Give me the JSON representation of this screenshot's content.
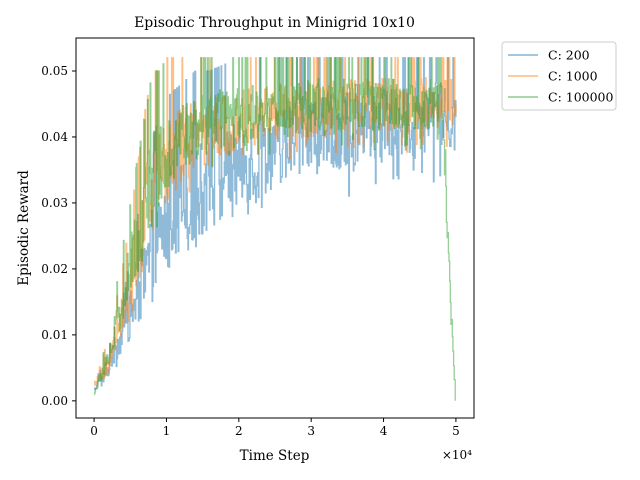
{
  "chart_data": {
    "type": "line",
    "title": "Episodic Throughput in Minigrid 10x10",
    "xlabel": "Time Step",
    "ylabel": "Episodic Reward",
    "x_multiplier_label": "×10⁴",
    "xlim": [
      -2500,
      52500
    ],
    "ylim": [
      -0.0026,
      0.055
    ],
    "xticks": [
      0,
      10000,
      20000,
      30000,
      40000,
      50000
    ],
    "xtick_labels": [
      "0",
      "1",
      "2",
      "3",
      "4",
      "5"
    ],
    "yticks": [
      0,
      0.01,
      0.02,
      0.03,
      0.04,
      0.05
    ],
    "ytick_labels": [
      "0.00",
      "0.01",
      "0.02",
      "0.03",
      "0.04",
      "0.05"
    ],
    "legend_position": "outside-top-right",
    "grid": false,
    "series": [
      {
        "name": "C: 200",
        "color": "#1f77b4",
        "x": [
          0,
          1000,
          2000,
          3000,
          4000,
          5000,
          6000,
          7000,
          8000,
          9000,
          10000,
          12000,
          14000,
          16000,
          18000,
          20000,
          22000,
          24000,
          26000,
          28000,
          30000,
          32000,
          34000,
          36000,
          38000,
          40000,
          42000,
          44000,
          46000,
          48000,
          50000
        ],
        "y": [
          0.002,
          0.003,
          0.005,
          0.008,
          0.01,
          0.013,
          0.016,
          0.019,
          0.022,
          0.025,
          0.027,
          0.029,
          0.031,
          0.033,
          0.034,
          0.036,
          0.037,
          0.038,
          0.039,
          0.04,
          0.04,
          0.041,
          0.041,
          0.041,
          0.042,
          0.042,
          0.042,
          0.042,
          0.043,
          0.043,
          0.043
        ],
        "low": [
          0.001,
          0.002,
          0.003,
          0.005,
          0.007,
          0.009,
          0.011,
          0.012,
          0.014,
          0.015,
          0.018,
          0.02,
          0.022,
          0.024,
          0.026,
          0.027,
          0.028,
          0.029,
          0.029,
          0.03,
          0.03,
          0.031,
          0.031,
          0.031,
          0.032,
          0.032,
          0.032,
          0.032,
          0.033,
          0.033,
          0.035
        ],
        "high": [
          0.003,
          0.005,
          0.008,
          0.012,
          0.016,
          0.022,
          0.028,
          0.035,
          0.04,
          0.043,
          0.046,
          0.048,
          0.05,
          0.05,
          0.051,
          0.052,
          0.052,
          0.052,
          0.052,
          0.052,
          0.052,
          0.052,
          0.052,
          0.052,
          0.052,
          0.052,
          0.052,
          0.052,
          0.052,
          0.052,
          0.052
        ]
      },
      {
        "name": "C: 1000",
        "color": "#ff7f0e",
        "x": [
          0,
          1000,
          2000,
          3000,
          4000,
          5000,
          6000,
          7000,
          8000,
          9000,
          10000,
          12000,
          14000,
          16000,
          18000,
          20000,
          22000,
          24000,
          26000,
          28000,
          30000,
          32000,
          34000,
          36000,
          38000,
          40000,
          42000,
          44000,
          46000,
          48000,
          50000
        ],
        "y": [
          0.002,
          0.004,
          0.006,
          0.01,
          0.014,
          0.018,
          0.023,
          0.028,
          0.032,
          0.035,
          0.037,
          0.039,
          0.04,
          0.041,
          0.042,
          0.043,
          0.043,
          0.044,
          0.044,
          0.044,
          0.044,
          0.044,
          0.045,
          0.045,
          0.045,
          0.045,
          0.045,
          0.045,
          0.045,
          0.045,
          0.045
        ],
        "low": [
          0.001,
          0.002,
          0.003,
          0.006,
          0.008,
          0.011,
          0.014,
          0.017,
          0.021,
          0.024,
          0.027,
          0.03,
          0.032,
          0.033,
          0.034,
          0.035,
          0.035,
          0.036,
          0.036,
          0.036,
          0.036,
          0.036,
          0.037,
          0.037,
          0.037,
          0.037,
          0.037,
          0.037,
          0.037,
          0.037,
          0.037
        ],
        "high": [
          0.003,
          0.006,
          0.01,
          0.015,
          0.021,
          0.028,
          0.036,
          0.044,
          0.05,
          0.05,
          0.052,
          0.052,
          0.052,
          0.052,
          0.052,
          0.052,
          0.052,
          0.052,
          0.052,
          0.052,
          0.052,
          0.052,
          0.052,
          0.052,
          0.052,
          0.052,
          0.052,
          0.052,
          0.052,
          0.052,
          0.052
        ]
      },
      {
        "name": "C: 100000",
        "color": "#2ca02c",
        "x": [
          0,
          1000,
          2000,
          3000,
          4000,
          5000,
          6000,
          7000,
          8000,
          9000,
          10000,
          12000,
          14000,
          16000,
          18000,
          20000,
          22000,
          24000,
          26000,
          28000,
          30000,
          32000,
          34000,
          36000,
          38000,
          40000,
          42000,
          44000,
          46000,
          48000,
          49900
        ],
        "y": [
          0.001,
          0.004,
          0.007,
          0.011,
          0.015,
          0.02,
          0.025,
          0.029,
          0.033,
          0.036,
          0.038,
          0.04,
          0.041,
          0.042,
          0.043,
          0.043,
          0.044,
          0.044,
          0.044,
          0.044,
          0.045,
          0.045,
          0.045,
          0.045,
          0.045,
          0.045,
          0.045,
          0.045,
          0.045,
          0.045,
          0.0
        ],
        "low": [
          0.001,
          0.002,
          0.004,
          0.006,
          0.009,
          0.012,
          0.016,
          0.02,
          0.024,
          0.027,
          0.03,
          0.032,
          0.034,
          0.035,
          0.036,
          0.036,
          0.037,
          0.037,
          0.037,
          0.037,
          0.038,
          0.038,
          0.038,
          0.038,
          0.038,
          0.038,
          0.038,
          0.038,
          0.038,
          0.038,
          0.0
        ],
        "high": [
          0.001,
          0.006,
          0.011,
          0.017,
          0.024,
          0.03,
          0.037,
          0.043,
          0.05,
          0.05,
          0.052,
          0.052,
          0.052,
          0.052,
          0.052,
          0.052,
          0.052,
          0.052,
          0.052,
          0.052,
          0.052,
          0.052,
          0.052,
          0.052,
          0.052,
          0.052,
          0.052,
          0.052,
          0.052,
          0.052,
          0.0
        ]
      }
    ]
  }
}
